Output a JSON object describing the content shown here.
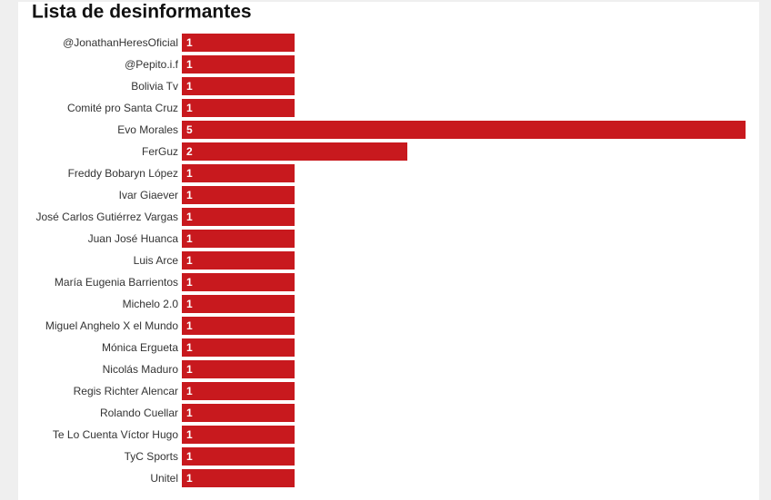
{
  "chart_data": {
    "type": "barh",
    "title": "Lista de desinformantes",
    "categories": [
      "@JonathanHeresOficial",
      "@Pepito.i.f",
      "Bolivia Tv",
      "Comité pro Santa Cruz",
      "Evo Morales",
      "FerGuz",
      "Freddy Bobaryn López",
      "Ivar Giaever",
      "José Carlos Gutiérrez Vargas",
      "Juan José Huanca",
      "Luis Arce",
      "María Eugenia Barrientos",
      "Michelo 2.0",
      "Miguel Anghelo X el Mundo",
      "Mónica Ergueta",
      "Nicolás Maduro",
      "Regis Richter Alencar",
      "Rolando Cuellar",
      "Te Lo Cuenta Víctor Hugo",
      "TyC Sports",
      "Unitel"
    ],
    "values": [
      1,
      1,
      1,
      1,
      5,
      2,
      1,
      1,
      1,
      1,
      1,
      1,
      1,
      1,
      1,
      1,
      1,
      1,
      1,
      1,
      1
    ],
    "color": "#c8191e",
    "xlim": [
      0,
      5
    ]
  }
}
